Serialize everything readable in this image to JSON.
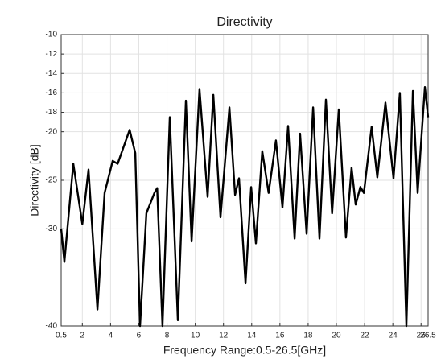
{
  "chart_data": {
    "type": "line",
    "title": "Directivity",
    "x_label": "Frequency Range:0.5-26.5[GHz]",
    "y_label": "Directivity [dB]",
    "xlim": [
      0.5,
      26.5
    ],
    "ylim": [
      -40,
      -10
    ],
    "xticks": [
      0.5,
      2,
      4,
      6,
      8,
      10,
      12,
      14,
      16,
      18,
      20,
      22,
      24,
      26,
      26.5
    ],
    "yticks": [
      -10,
      -12,
      -14,
      -16,
      -18,
      -20,
      -25,
      -30,
      -40
    ],
    "grid": true,
    "series": [
      {
        "color": "#000000",
        "x": [
          0.5,
          0.73,
          1.36,
          2.0,
          2.44,
          3.07,
          3.58,
          4.15,
          4.5,
          5.35,
          5.75,
          6.09,
          6.54,
          7.11,
          7.3,
          7.68,
          8.2,
          8.77,
          9.34,
          9.74,
          10.3,
          10.88,
          11.28,
          11.79,
          12.42,
          12.82,
          13.1,
          13.56,
          13.96,
          14.3,
          14.75,
          15.2,
          15.72,
          16.18,
          16.58,
          17.04,
          17.43,
          17.89,
          18.35,
          18.8,
          19.26,
          19.7,
          20.17,
          20.68,
          21.08,
          21.37,
          21.7,
          21.95,
          22.5,
          22.9,
          23.48,
          24.05,
          24.5,
          24.96,
          25.42,
          25.76,
          26.27,
          26.5
        ],
        "values": [
          -30,
          -33.4,
          -23.3,
          -29.5,
          -23.9,
          -38.3,
          -26.3,
          -23.0,
          -23.3,
          -19.8,
          -22.2,
          -40,
          -28.4,
          -26.3,
          -25.8,
          -40,
          -18.5,
          -39.4,
          -16.8,
          -31.3,
          -15.6,
          -26.7,
          -16.2,
          -28.8,
          -17.5,
          -26.5,
          -24.8,
          -35.6,
          -25.7,
          -31.5,
          -22.0,
          -26.3,
          -20.9,
          -27.8,
          -19.4,
          -31.0,
          -20.2,
          -30.5,
          -17.5,
          -31.0,
          -16.7,
          -28.4,
          -17.7,
          -30.9,
          -23.7,
          -27.5,
          -25.7,
          -26.3,
          -19.5,
          -24.7,
          -17.0,
          -24.8,
          -16.0,
          -40,
          -15.8,
          -26.3,
          -15.4,
          -18.5
        ]
      }
    ]
  }
}
